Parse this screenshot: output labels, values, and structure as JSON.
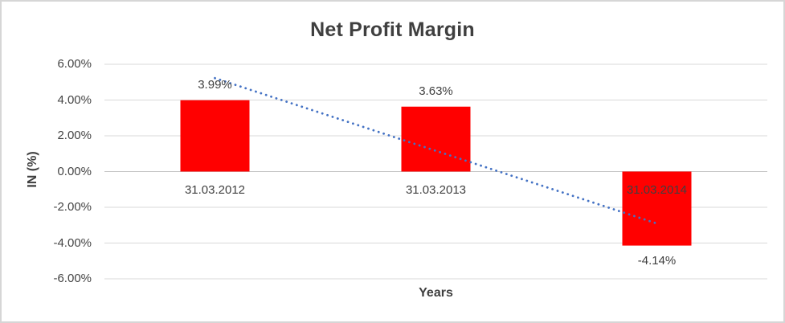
{
  "chart_data": {
    "type": "bar",
    "title": "Net Profit Margin",
    "xlabel": "Years",
    "ylabel": "IN (%)",
    "categories": [
      "31.03.2012",
      "31.03.2013",
      "31.03.2014"
    ],
    "values": [
      3.99,
      3.63,
      -4.14
    ],
    "value_labels": [
      "3.99%",
      "3.63%",
      "-4.14%"
    ],
    "ylim": [
      -6,
      6
    ],
    "yticks": [
      6,
      4,
      2,
      0,
      -2,
      -4,
      -6
    ],
    "ytick_labels": [
      "6.00%",
      "4.00%",
      "2.00%",
      "0.00%",
      "-2.00%",
      "-4.00%",
      "-6.00%"
    ],
    "grid": true,
    "legend": false,
    "bar_color": "#ff0000",
    "gridline_color": "#d9d9d9",
    "axis_line_color": "#c6c6c6",
    "label_color": "#404040",
    "title_color": "#3f3f3f",
    "trendline": {
      "type": "linear",
      "style": "dotted",
      "color": "#4472c4"
    }
  }
}
